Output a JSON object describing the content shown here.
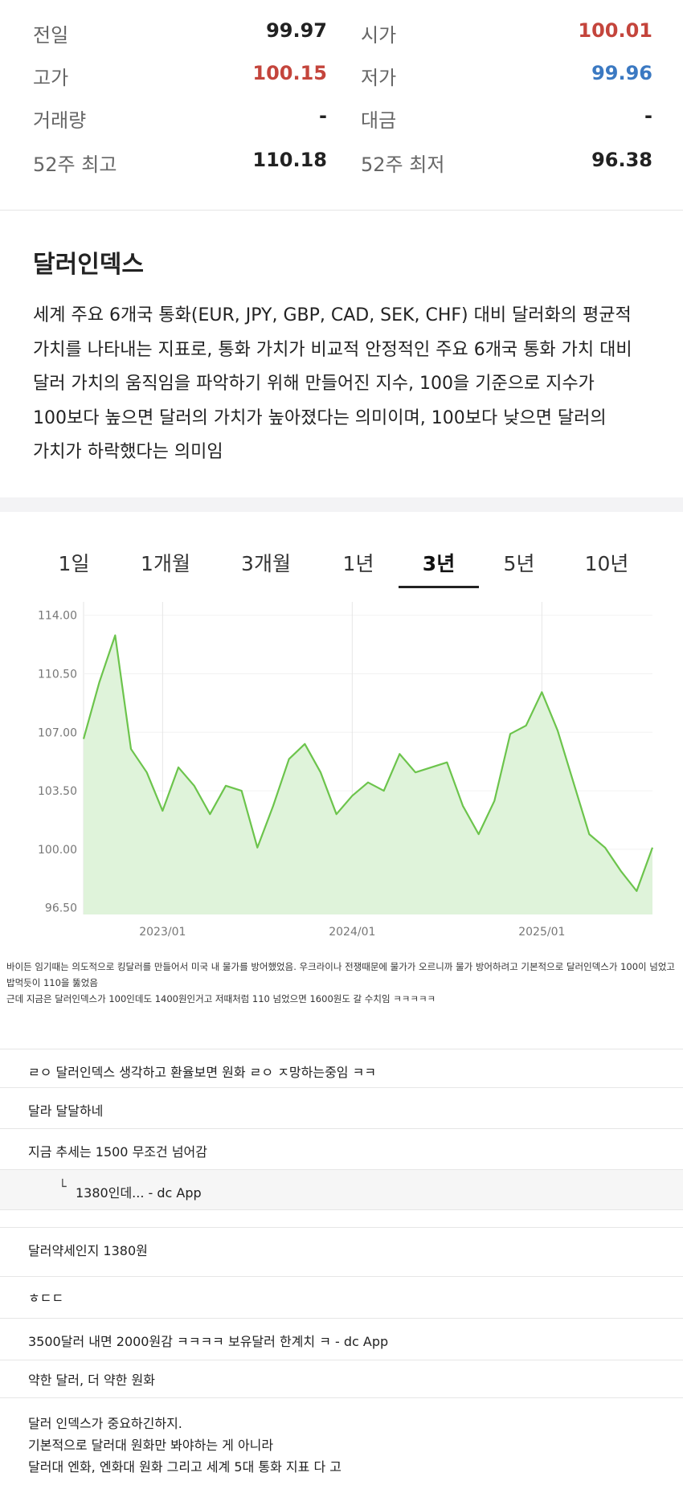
{
  "stats": [
    {
      "label": "전일",
      "value": 99.97
    },
    {
      "label": "시가",
      "value": 100.01,
      "color": "#c4453c"
    },
    {
      "label": "고가",
      "value": 100.15,
      "color": "#c4453c"
    },
    {
      "label": "저가",
      "value": 99.96,
      "color": "#3b79c2"
    },
    {
      "label": "거래량",
      "value": "-"
    },
    {
      "label": "대금",
      "value": "-"
    },
    {
      "label": "52주 최고",
      "value": 110.18
    },
    {
      "label": "52주 최저",
      "value": 96.38
    }
  ],
  "section_title": "달러인덱스",
  "description": "세계 주요 6개국 통화(EUR, JPY, GBP, CAD, SEK, CHF) 대비 달러화의 평균적 가치를 나타내는 지표로, 통화 가치가 비교적 안정적인 주요 6개국 통화 가치 대비 달러 가치의 움직임을 파악하기 위해 만들어진 지수, 100을 기준으로 지수가 100보다 높으면 달러의 가치가 높아졌다는 의미이며, 100보다 낮으면 달러의 가치가 하락했다는 의미임",
  "tabs": [
    "1일",
    "1개월",
    "3개월",
    "1년",
    "3년",
    "5년",
    "10년"
  ],
  "active_tab": "3년",
  "chart_data": {
    "type": "line",
    "color": "#6cc44c",
    "fill_color": "#dff3da",
    "x": [
      "2022/08",
      "2022/09",
      "2022/10",
      "2022/11",
      "2022/12",
      "2023/01",
      "2023/02",
      "2023/03",
      "2023/04",
      "2023/05",
      "2023/06",
      "2023/07",
      "2023/08",
      "2023/09",
      "2023/10",
      "2023/11",
      "2023/12",
      "2024/01",
      "2024/02",
      "2024/03",
      "2024/04",
      "2024/05",
      "2024/06",
      "2024/07",
      "2024/08",
      "2024/09",
      "2024/10",
      "2024/11",
      "2024/12",
      "2025/01",
      "2025/02",
      "2025/03",
      "2025/04",
      "2025/05",
      "2025/06",
      "2025/07",
      "2025/08"
    ],
    "values": [
      106.6,
      110.0,
      112.8,
      106.0,
      104.6,
      102.3,
      104.9,
      103.8,
      102.1,
      103.8,
      103.5,
      100.1,
      102.6,
      105.4,
      106.3,
      104.6,
      102.1,
      103.2,
      104.0,
      103.5,
      105.7,
      104.6,
      104.9,
      105.2,
      102.6,
      100.9,
      102.9,
      106.9,
      107.4,
      109.4,
      107.1,
      104.0,
      100.9,
      100.1,
      98.7,
      97.5,
      100.1
    ],
    "ylim": [
      96.1,
      114.8
    ],
    "yticks": [
      {
        "value": 114,
        "label": "114.00"
      },
      {
        "value": 110.5,
        "label": "110.50"
      },
      {
        "value": 107,
        "label": "107.00"
      },
      {
        "value": 103.5,
        "label": "103.50"
      },
      {
        "value": 100,
        "label": "100.00"
      },
      {
        "value": 96.5,
        "label": "96.50"
      }
    ],
    "xticks": [
      "2023/01",
      "2024/01",
      "2025/01"
    ],
    "grid": true
  },
  "comment_note": [
    "바이든 임기때는 의도적으로 킹달러를 만들어서 미국 내 물가를 방어했었음. 우크라이나 전쟁때문에 물가가 오르니까 물가 방어하려고 기본적으로 달러인덱스가 100이 넘었고 밥먹듯이 110을 뚫었음",
    "근데 지금은 달러인덱스가 100인데도 1400원인거고 저때처럼 110 넘었으면 1600원도 갈 수치임 ㅋㅋㅋㅋㅋ"
  ],
  "comments": [
    {
      "text": "ㄹㅇ 달러인덱스 생각하고 환율보면 원화 ㄹㅇ ㅈ망하는중임 ㅋㅋ"
    },
    {
      "text": "달라 달달하네"
    },
    {
      "text": "지금 추세는 1500 무조건 넘어감"
    },
    {
      "reply": "1380인데... - dc App"
    },
    {
      "text": "달러약세인지 1380원"
    },
    {
      "text": "ㅎㄷㄷ"
    },
    {
      "text": "3500달러 내면 2000원감 ㅋㅋㅋㅋ 보유달러 한계치 ㅋ - dc App"
    },
    {
      "text": "약한 달러, 더 약한 원화"
    },
    {
      "lines": [
        "달러 인덱스가 중요하긴하지.",
        "기본적으로 달러대 원화만 봐야하는 게 아니라",
        "달러대 엔화, 엔화대 원화 그리고 세계 5대 통화 지표 다 고"
      ]
    }
  ]
}
